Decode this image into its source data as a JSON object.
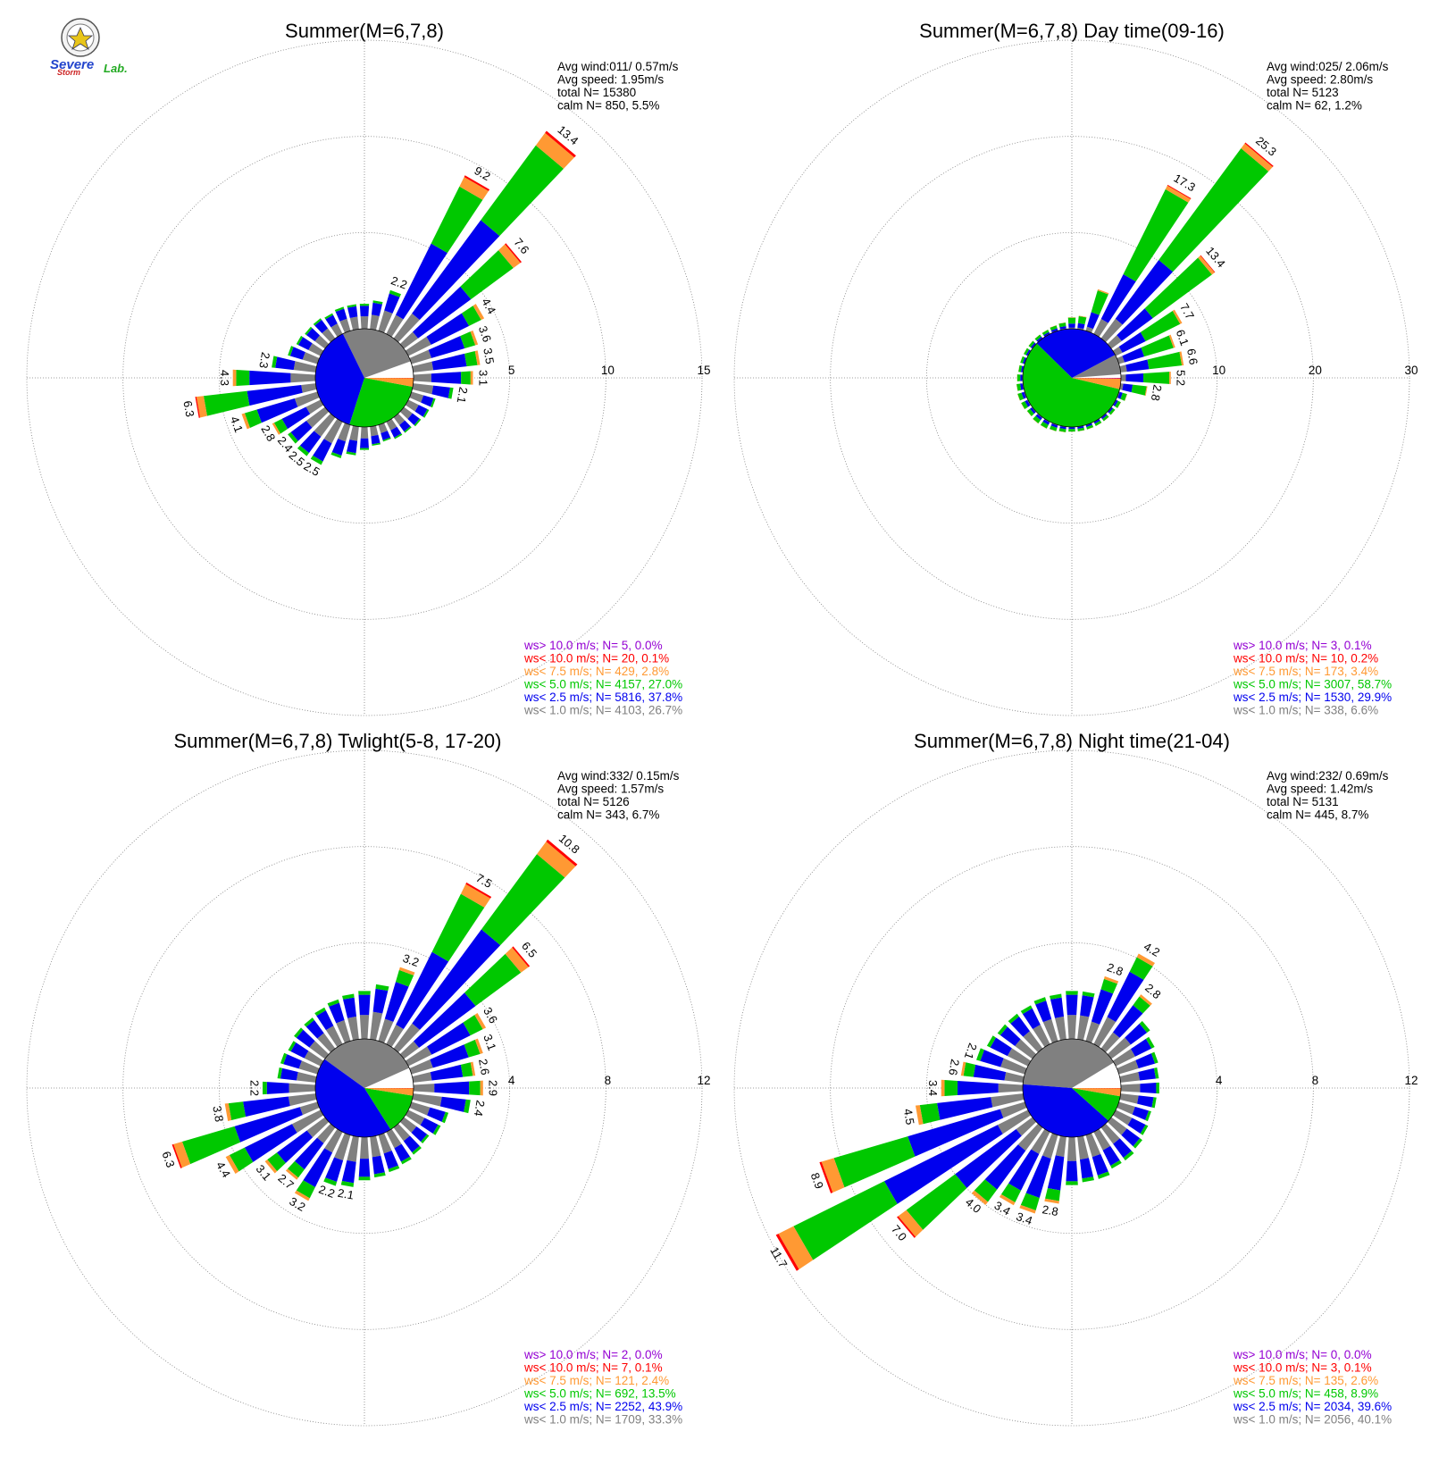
{
  "logo": {
    "line1": "Severe",
    "line2": "Storm",
    "line3": "Lab."
  },
  "colors": {
    "purple": "#9400d3",
    "red": "#ff0000",
    "orange": "#ff9933",
    "green": "#00c800",
    "blue": "#0000ee",
    "gray": "#808080",
    "grid": "#808080"
  },
  "legend_texts": [
    "ws> 10.0 m/s; N=",
    "ws< 10.0 m/s; N=",
    "ws<  7.5 m/s; N=",
    "ws<  5.0 m/s; N=",
    "ws<  2.5 m/s; N=",
    "ws<  1.0 m/s; N="
  ],
  "chart_data": [
    {
      "type": "wind-rose",
      "title": "Summer(M=6,7,8)",
      "info": [
        "Avg wind:011/ 0.57m/s",
        "Avg speed: 1.95m/s",
        "total N=      15380",
        "calm N=    850,   5.5%"
      ],
      "ring_values": [
        5,
        10,
        15
      ],
      "ring_labels": [
        "5",
        "10",
        "15"
      ],
      "rmax": 15,
      "calm_pie": [
        5.5,
        26.7,
        37.8,
        27.0,
        2.8,
        0.1,
        0.0
      ],
      "legend": [
        {
          "n": "5",
          "pct": "0.0%"
        },
        {
          "n": "20",
          "pct": "0.1%"
        },
        {
          "n": "429",
          "pct": "2.8%"
        },
        {
          "n": "4157",
          "pct": "27.0%"
        },
        {
          "n": "5816",
          "pct": "37.8%"
        },
        {
          "n": "4103",
          "pct": "26.7%"
        }
      ],
      "bars": [
        {
          "dir": 0,
          "total": 1.3
        },
        {
          "dir": 10,
          "total": 1.5
        },
        {
          "dir": 20,
          "total": 2.2,
          "label": "2.2"
        },
        {
          "dir": 30,
          "total": 9.2,
          "label": "9.2"
        },
        {
          "dir": 40,
          "total": 13.4,
          "label": "13.4"
        },
        {
          "dir": 50,
          "total": 7.6,
          "label": "7.6"
        },
        {
          "dir": 60,
          "total": 4.4,
          "label": "4.4"
        },
        {
          "dir": 70,
          "total": 3.6,
          "label": "3.6"
        },
        {
          "dir": 80,
          "total": 3.5,
          "label": "3.5"
        },
        {
          "dir": 90,
          "total": 3.1,
          "label": "3.1"
        },
        {
          "dir": 100,
          "total": 2.1,
          "label": "2.1"
        },
        {
          "dir": 110,
          "total": 1.3
        },
        {
          "dir": 120,
          "total": 1.2
        },
        {
          "dir": 130,
          "total": 1.1
        },
        {
          "dir": 140,
          "total": 1.0
        },
        {
          "dir": 150,
          "total": 1.0
        },
        {
          "dir": 160,
          "total": 0.9
        },
        {
          "dir": 170,
          "total": 1.0
        },
        {
          "dir": 180,
          "total": 1.2
        },
        {
          "dir": 190,
          "total": 1.5
        },
        {
          "dir": 200,
          "total": 1.8
        },
        {
          "dir": 210,
          "total": 2.5,
          "label": "2.5"
        },
        {
          "dir": 220,
          "total": 2.5,
          "label": "2.5"
        },
        {
          "dir": 230,
          "total": 2.4,
          "label": "2.4"
        },
        {
          "dir": 240,
          "total": 2.8,
          "label": "2.8"
        },
        {
          "dir": 250,
          "total": 4.1,
          "label": "4.1"
        },
        {
          "dir": 260,
          "total": 6.3,
          "label": "6.3"
        },
        {
          "dir": 270,
          "total": 4.3,
          "label": "4.3"
        },
        {
          "dir": 280,
          "total": 2.3,
          "label": "2.3"
        },
        {
          "dir": 290,
          "total": 1.6
        },
        {
          "dir": 300,
          "total": 1.4
        },
        {
          "dir": 310,
          "total": 1.3
        },
        {
          "dir": 320,
          "total": 1.3
        },
        {
          "dir": 330,
          "total": 1.2
        },
        {
          "dir": 340,
          "total": 1.3
        },
        {
          "dir": 350,
          "total": 1.3
        }
      ]
    },
    {
      "type": "wind-rose",
      "title": "Summer(M=6,7,8) Day time(09-16)",
      "info": [
        "Avg wind:025/ 2.06m/s",
        "Avg speed: 2.80m/s",
        "total N=       5123",
        "calm N=     62,   1.2%"
      ],
      "ring_values": [
        10,
        20,
        30
      ],
      "ring_labels": [
        "10",
        "20",
        "30"
      ],
      "rmax": 30,
      "calm_pie": [
        1.2,
        6.6,
        29.9,
        58.7,
        3.4,
        0.2,
        0.1
      ],
      "legend": [
        {
          "n": "3",
          "pct": "0.1%"
        },
        {
          "n": "10",
          "pct": "0.2%"
        },
        {
          "n": "173",
          "pct": "3.4%"
        },
        {
          "n": "3007",
          "pct": "58.7%"
        },
        {
          "n": "1530",
          "pct": "29.9%"
        },
        {
          "n": "338",
          "pct": "6.6%"
        }
      ],
      "bars": [
        {
          "dir": 0,
          "total": 1.2
        },
        {
          "dir": 10,
          "total": 1.4
        },
        {
          "dir": 20,
          "total": 4.5
        },
        {
          "dir": 30,
          "total": 17.3,
          "label": "17.3"
        },
        {
          "dir": 40,
          "total": 25.3,
          "label": "25.3"
        },
        {
          "dir": 50,
          "total": 13.4,
          "label": "13.4"
        },
        {
          "dir": 60,
          "total": 7.7,
          "label": "7.7"
        },
        {
          "dir": 70,
          "total": 6.1,
          "label": "6.1"
        },
        {
          "dir": 80,
          "total": 6.6,
          "label": "6.6"
        },
        {
          "dir": 90,
          "total": 5.2,
          "label": "5.2"
        },
        {
          "dir": 100,
          "total": 2.8,
          "label": "2.8"
        },
        {
          "dir": 110,
          "total": 0.9
        },
        {
          "dir": 120,
          "total": 0.6
        },
        {
          "dir": 130,
          "total": 0.5
        },
        {
          "dir": 140,
          "total": 0.5
        },
        {
          "dir": 150,
          "total": 0.5
        },
        {
          "dir": 160,
          "total": 0.5
        },
        {
          "dir": 170,
          "total": 0.5
        },
        {
          "dir": 180,
          "total": 0.5
        },
        {
          "dir": 190,
          "total": 0.6
        },
        {
          "dir": 200,
          "total": 0.7
        },
        {
          "dir": 210,
          "total": 0.8
        },
        {
          "dir": 220,
          "total": 0.8
        },
        {
          "dir": 230,
          "total": 0.7
        },
        {
          "dir": 240,
          "total": 0.8
        },
        {
          "dir": 250,
          "total": 0.8
        },
        {
          "dir": 260,
          "total": 0.7
        },
        {
          "dir": 270,
          "total": 0.6
        },
        {
          "dir": 280,
          "total": 0.5
        },
        {
          "dir": 290,
          "total": 0.5
        },
        {
          "dir": 300,
          "total": 0.5
        },
        {
          "dir": 310,
          "total": 0.5
        },
        {
          "dir": 320,
          "total": 0.5
        },
        {
          "dir": 330,
          "total": 0.5
        },
        {
          "dir": 340,
          "total": 0.6
        },
        {
          "dir": 350,
          "total": 0.7
        }
      ]
    },
    {
      "type": "wind-rose",
      "title": "Summer(M=6,7,8) Twlight(5-8, 17-20)",
      "info": [
        "Avg wind:332/ 0.15m/s",
        "Avg speed: 1.57m/s",
        "total N=       5126",
        "calm N=    343,   6.7%"
      ],
      "ring_values": [
        4,
        8,
        12
      ],
      "ring_labels": [
        "4",
        "8",
        "12"
      ],
      "rmax": 12,
      "calm_pie": [
        6.7,
        33.3,
        43.9,
        13.5,
        2.4,
        0.1,
        0.0
      ],
      "legend": [
        {
          "n": "2",
          "pct": "0.0%"
        },
        {
          "n": "7",
          "pct": "0.1%"
        },
        {
          "n": "121",
          "pct": "2.4%"
        },
        {
          "n": "692",
          "pct": "13.5%"
        },
        {
          "n": "2252",
          "pct": "43.9%"
        },
        {
          "n": "1709",
          "pct": "33.3%"
        }
      ],
      "bars": [
        {
          "dir": 0,
          "total": 2.0
        },
        {
          "dir": 10,
          "total": 2.3
        },
        {
          "dir": 20,
          "total": 3.2,
          "label": "3.2"
        },
        {
          "dir": 30,
          "total": 7.5,
          "label": "7.5"
        },
        {
          "dir": 40,
          "total": 10.8,
          "label": "10.8"
        },
        {
          "dir": 50,
          "total": 6.5,
          "label": "6.5"
        },
        {
          "dir": 60,
          "total": 3.6,
          "label": "3.6"
        },
        {
          "dir": 70,
          "total": 3.1,
          "label": "3.1"
        },
        {
          "dir": 80,
          "total": 2.6,
          "label": "2.6"
        },
        {
          "dir": 90,
          "total": 2.9,
          "label": "2.9"
        },
        {
          "dir": 100,
          "total": 2.4,
          "label": "2.4"
        },
        {
          "dir": 110,
          "total": 1.6
        },
        {
          "dir": 120,
          "total": 1.5
        },
        {
          "dir": 130,
          "total": 1.3
        },
        {
          "dir": 140,
          "total": 1.4
        },
        {
          "dir": 150,
          "total": 1.5
        },
        {
          "dir": 160,
          "total": 1.6
        },
        {
          "dir": 170,
          "total": 1.7
        },
        {
          "dir": 180,
          "total": 1.8
        },
        {
          "dir": 190,
          "total": 2.1,
          "label": "2.1"
        },
        {
          "dir": 200,
          "total": 2.2,
          "label": "2.2"
        },
        {
          "dir": 210,
          "total": 3.2,
          "label": "3.2"
        },
        {
          "dir": 220,
          "total": 2.7,
          "label": "2.7"
        },
        {
          "dir": 230,
          "total": 3.1,
          "label": "3.1"
        },
        {
          "dir": 240,
          "total": 4.4,
          "label": "4.4"
        },
        {
          "dir": 250,
          "total": 6.3,
          "label": "6.3"
        },
        {
          "dir": 260,
          "total": 3.8,
          "label": "3.8"
        },
        {
          "dir": 270,
          "total": 2.2,
          "label": "2.2"
        },
        {
          "dir": 280,
          "total": 1.6
        },
        {
          "dir": 290,
          "total": 1.6
        },
        {
          "dir": 300,
          "total": 1.5
        },
        {
          "dir": 310,
          "total": 1.6
        },
        {
          "dir": 320,
          "total": 1.6
        },
        {
          "dir": 330,
          "total": 1.7
        },
        {
          "dir": 340,
          "total": 1.8
        },
        {
          "dir": 350,
          "total": 1.9
        }
      ]
    },
    {
      "type": "wind-rose",
      "title": "Summer(M=6,7,8) Night time(21-04)",
      "info": [
        "Avg wind:232/ 0.69m/s",
        "Avg speed: 1.42m/s",
        "total N=       5131",
        "calm N=    445,   8.7%"
      ],
      "ring_values": [
        4,
        8,
        12
      ],
      "ring_labels": [
        "4",
        "8",
        "12"
      ],
      "rmax": 12,
      "calm_pie": [
        8.7,
        40.1,
        39.6,
        8.9,
        2.6,
        0.1,
        0.0
      ],
      "legend": [
        {
          "n": "0",
          "pct": "0.0%"
        },
        {
          "n": "3",
          "pct": "0.1%"
        },
        {
          "n": "135",
          "pct": "2.6%"
        },
        {
          "n": "458",
          "pct": "8.9%"
        },
        {
          "n": "2034",
          "pct": "39.6%"
        },
        {
          "n": "2056",
          "pct": "40.1%"
        }
      ],
      "bars": [
        {
          "dir": 0,
          "total": 2.0
        },
        {
          "dir": 10,
          "total": 2.0
        },
        {
          "dir": 20,
          "total": 2.8,
          "label": "2.8"
        },
        {
          "dir": 30,
          "total": 4.2,
          "label": "4.2"
        },
        {
          "dir": 40,
          "total": 2.8,
          "label": "2.8"
        },
        {
          "dir": 50,
          "total": 2.0
        },
        {
          "dir": 60,
          "total": 1.8
        },
        {
          "dir": 70,
          "total": 1.7
        },
        {
          "dir": 80,
          "total": 1.6
        },
        {
          "dir": 90,
          "total": 1.6
        },
        {
          "dir": 100,
          "total": 1.5
        },
        {
          "dir": 110,
          "total": 1.4
        },
        {
          "dir": 120,
          "total": 1.5
        },
        {
          "dir": 130,
          "total": 1.6
        },
        {
          "dir": 140,
          "total": 1.7
        },
        {
          "dir": 150,
          "total": 1.7
        },
        {
          "dir": 160,
          "total": 1.9
        },
        {
          "dir": 170,
          "total": 1.9
        },
        {
          "dir": 180,
          "total": 2.0
        },
        {
          "dir": 190,
          "total": 2.8,
          "label": "2.8"
        },
        {
          "dir": 200,
          "total": 3.4,
          "label": "3.4"
        },
        {
          "dir": 210,
          "total": 3.4,
          "label": "3.4"
        },
        {
          "dir": 220,
          "total": 4.0,
          "label": "4.0"
        },
        {
          "dir": 230,
          "total": 7.0,
          "label": "7.0"
        },
        {
          "dir": 240,
          "total": 11.7,
          "label": "11.7"
        },
        {
          "dir": 250,
          "total": 8.9,
          "label": "8.9"
        },
        {
          "dir": 260,
          "total": 4.5,
          "label": "4.5"
        },
        {
          "dir": 270,
          "total": 3.4,
          "label": "3.4"
        },
        {
          "dir": 280,
          "total": 2.6,
          "label": "2.6"
        },
        {
          "dir": 290,
          "total": 2.1,
          "label": "2.1"
        },
        {
          "dir": 300,
          "total": 1.9
        },
        {
          "dir": 310,
          "total": 1.8
        },
        {
          "dir": 320,
          "total": 1.8
        },
        {
          "dir": 330,
          "total": 1.8
        },
        {
          "dir": 340,
          "total": 1.9
        },
        {
          "dir": 350,
          "total": 1.9
        }
      ]
    }
  ]
}
